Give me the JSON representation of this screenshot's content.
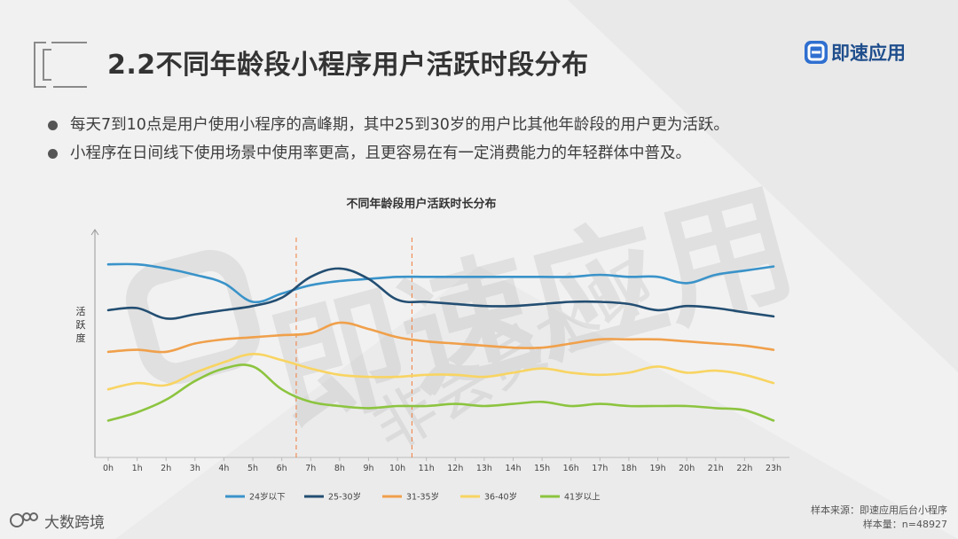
{
  "slide": {
    "title": "2.2不同年龄段小程序用户活跃时段分布",
    "logo_text": "即速应用",
    "bullets": [
      "每天7到10点是用户使用小程序的高峰期，其中25到30岁的用户比其他年龄段的用户更为活跃。",
      "小程序在日间线下使用场景中使用率更高，且更容易在有一定消费能力的年轻群体中普及。"
    ],
    "watermark": "即速应用",
    "watermark_sub": "非会员水印",
    "footer_brand": "大数跨境",
    "source_line1": "样本来源：即速应用后台小程序",
    "source_line2": "样本量：n=48927"
  },
  "chart_data": {
    "type": "line",
    "title": "不同年龄段用户活跃时长分布",
    "ylabel": "活跃度",
    "xlabel": "",
    "categories": [
      "0h",
      "1h",
      "2h",
      "3h",
      "4h",
      "5h",
      "6h",
      "7h",
      "8h",
      "9h",
      "10h",
      "11h",
      "12h",
      "13h",
      "14h",
      "15h",
      "16h",
      "17h",
      "18h",
      "19h",
      "20h",
      "21h",
      "22h",
      "23h"
    ],
    "ylim": [
      0,
      100
    ],
    "y_ticks_shown": false,
    "grid": false,
    "legend_position": "bottom",
    "series": [
      {
        "name": "24岁以下",
        "color": "#3a93c9",
        "values": [
          88,
          88,
          86,
          83,
          79,
          70,
          74,
          78,
          80,
          81,
          82,
          82,
          82,
          82,
          82,
          82,
          82,
          83,
          82,
          82,
          79,
          83,
          85,
          87
        ]
      },
      {
        "name": "25-30岁",
        "color": "#234e72",
        "values": [
          66,
          67,
          62,
          64,
          66,
          68,
          72,
          82,
          86,
          81,
          71,
          70,
          69,
          68,
          68,
          69,
          70,
          70,
          69,
          66,
          68,
          67,
          65,
          63
        ]
      },
      {
        "name": "31-35岁",
        "color": "#f0a04b",
        "values": [
          46,
          47,
          46,
          50,
          52,
          53,
          54,
          55,
          60,
          57,
          53,
          51,
          50,
          49,
          48,
          48,
          50,
          52,
          52,
          52,
          51,
          50,
          49,
          47
        ]
      },
      {
        "name": "36-40岁",
        "color": "#f8d462",
        "values": [
          28,
          31,
          30,
          36,
          41,
          45,
          42,
          38,
          35,
          34,
          34,
          35,
          35,
          34,
          36,
          38,
          36,
          35,
          36,
          39,
          36,
          37,
          35,
          31
        ]
      },
      {
        "name": "41岁以上",
        "color": "#8cc43f",
        "values": [
          13,
          17,
          23,
          32,
          38,
          39,
          28,
          22,
          20,
          19,
          20,
          20,
          21,
          20,
          21,
          22,
          20,
          21,
          20,
          20,
          20,
          19,
          18,
          13
        ]
      }
    ],
    "reference_lines": [
      "7h",
      "11h"
    ]
  }
}
